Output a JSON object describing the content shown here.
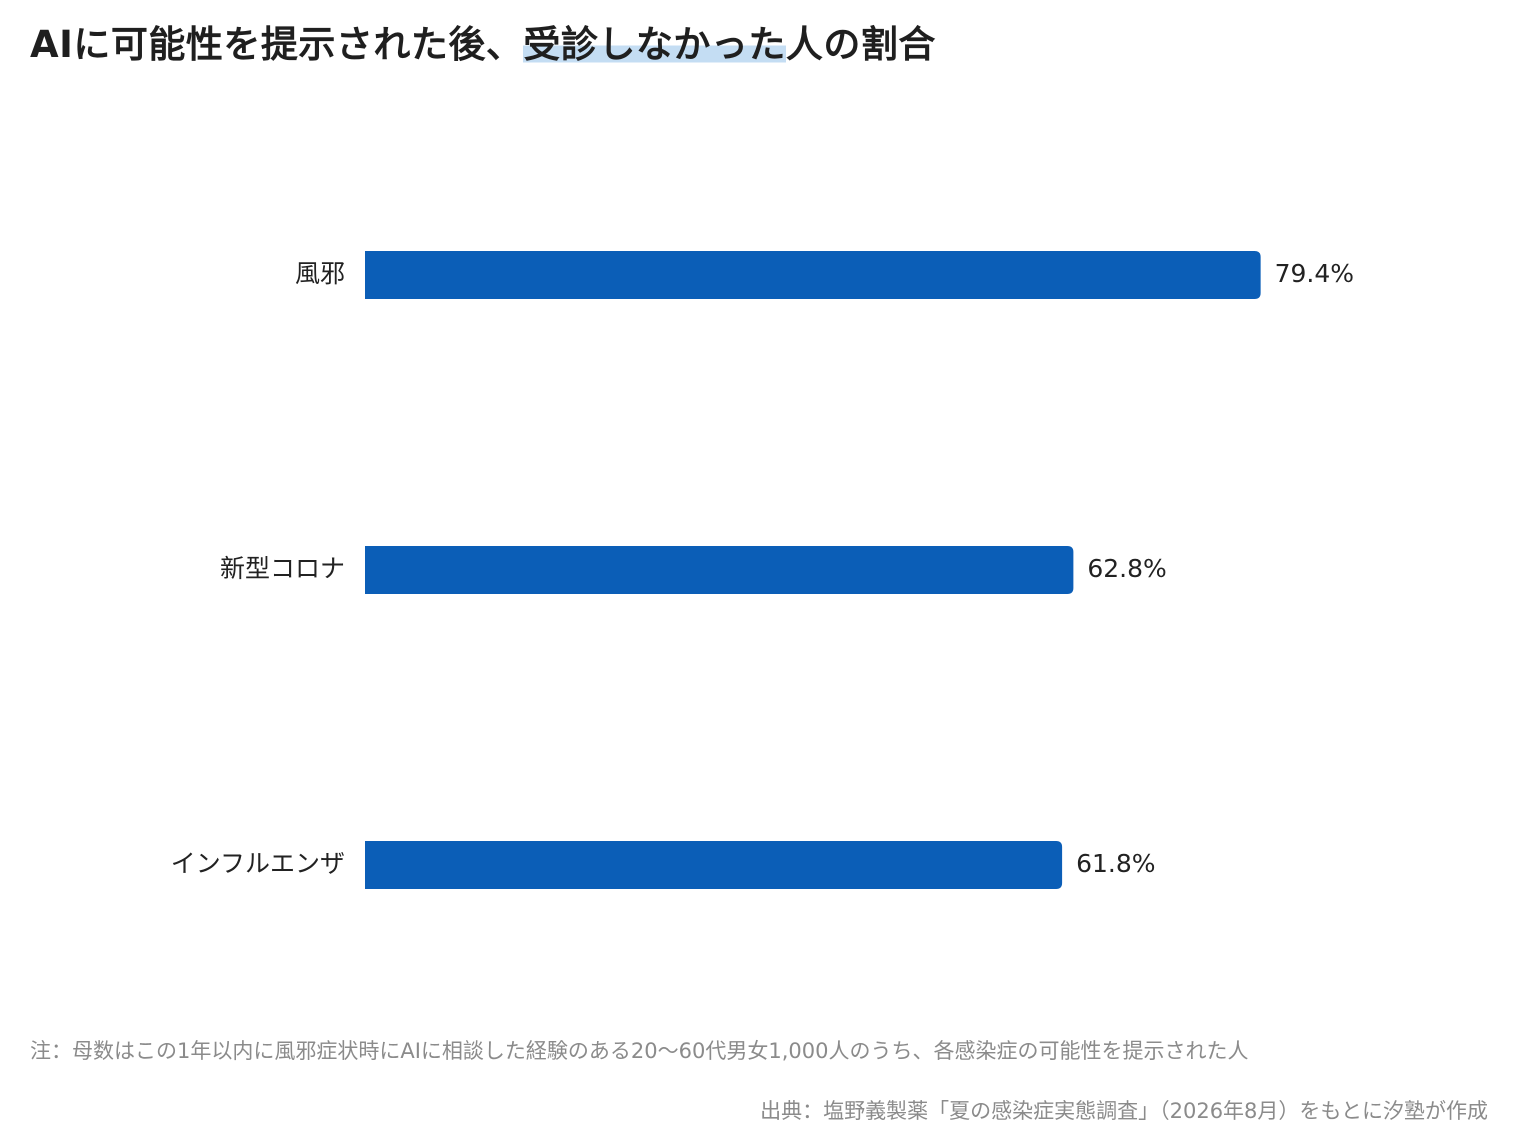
{
  "title": {
    "before": "AIに可能性を提示された後、",
    "highlight": "受診しなかった",
    "after": "人の割合"
  },
  "chart_data": {
    "type": "bar",
    "orientation": "horizontal",
    "categories": [
      "風邪",
      "新型コロナ",
      "インフルエンザ"
    ],
    "values": [
      79.4,
      62.8,
      61.8
    ],
    "value_labels": [
      "79.4%",
      "62.8%",
      "61.8%"
    ],
    "unit": "%",
    "xlim": [
      0,
      100
    ],
    "grid": false,
    "bar_color": "#0b5eb7"
  },
  "note": "注：母数はこの1年以内に風邪症状時にAIに相談した経験のある20〜60代男女1,000人のうち、各感染症の可能性を提示された人",
  "source": "出典：塩野義製薬「夏の感染症実態調査」（2026年8月）をもとに汐塾が作成",
  "colors": {
    "bar": "#0b5eb7",
    "title_highlight": "#c4ddf3",
    "footnote_text": "#8b8b8b"
  }
}
